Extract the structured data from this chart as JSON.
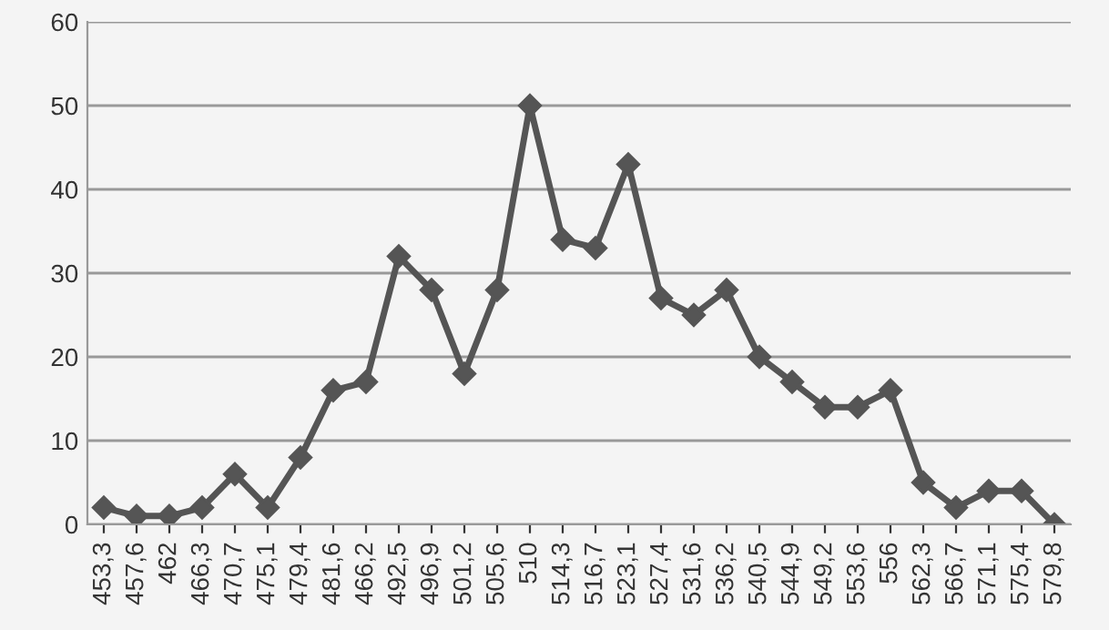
{
  "chart_data": {
    "type": "line",
    "categories": [
      "453,3",
      "457,6",
      "462",
      "466,3",
      "470,7",
      "475,1",
      "479,4",
      "481,6",
      "466,2",
      "492,5",
      "496,9",
      "501,2",
      "505,6",
      "510",
      "514,3",
      "516,7",
      "523,1",
      "527,4",
      "531,6",
      "536,2",
      "540,5",
      "544,9",
      "549,2",
      "553,6",
      "556",
      "562,3",
      "566,7",
      "571,1",
      "575,4",
      "579,8"
    ],
    "series": [
      {
        "color": "#555555",
        "values": [
          2,
          1,
          1,
          2,
          6,
          2,
          8,
          16,
          17,
          32,
          28,
          18,
          28,
          50,
          34,
          33,
          43,
          27,
          25,
          28,
          20,
          17,
          14,
          14,
          16,
          5,
          2,
          4,
          4,
          0
        ]
      }
    ],
    "ylim": [
      0,
      60
    ],
    "yticks": [
      0,
      10,
      20,
      30,
      40,
      50,
      60
    ],
    "grid": "y",
    "marker": "diamond",
    "line_style": "solid",
    "legend": false
  }
}
